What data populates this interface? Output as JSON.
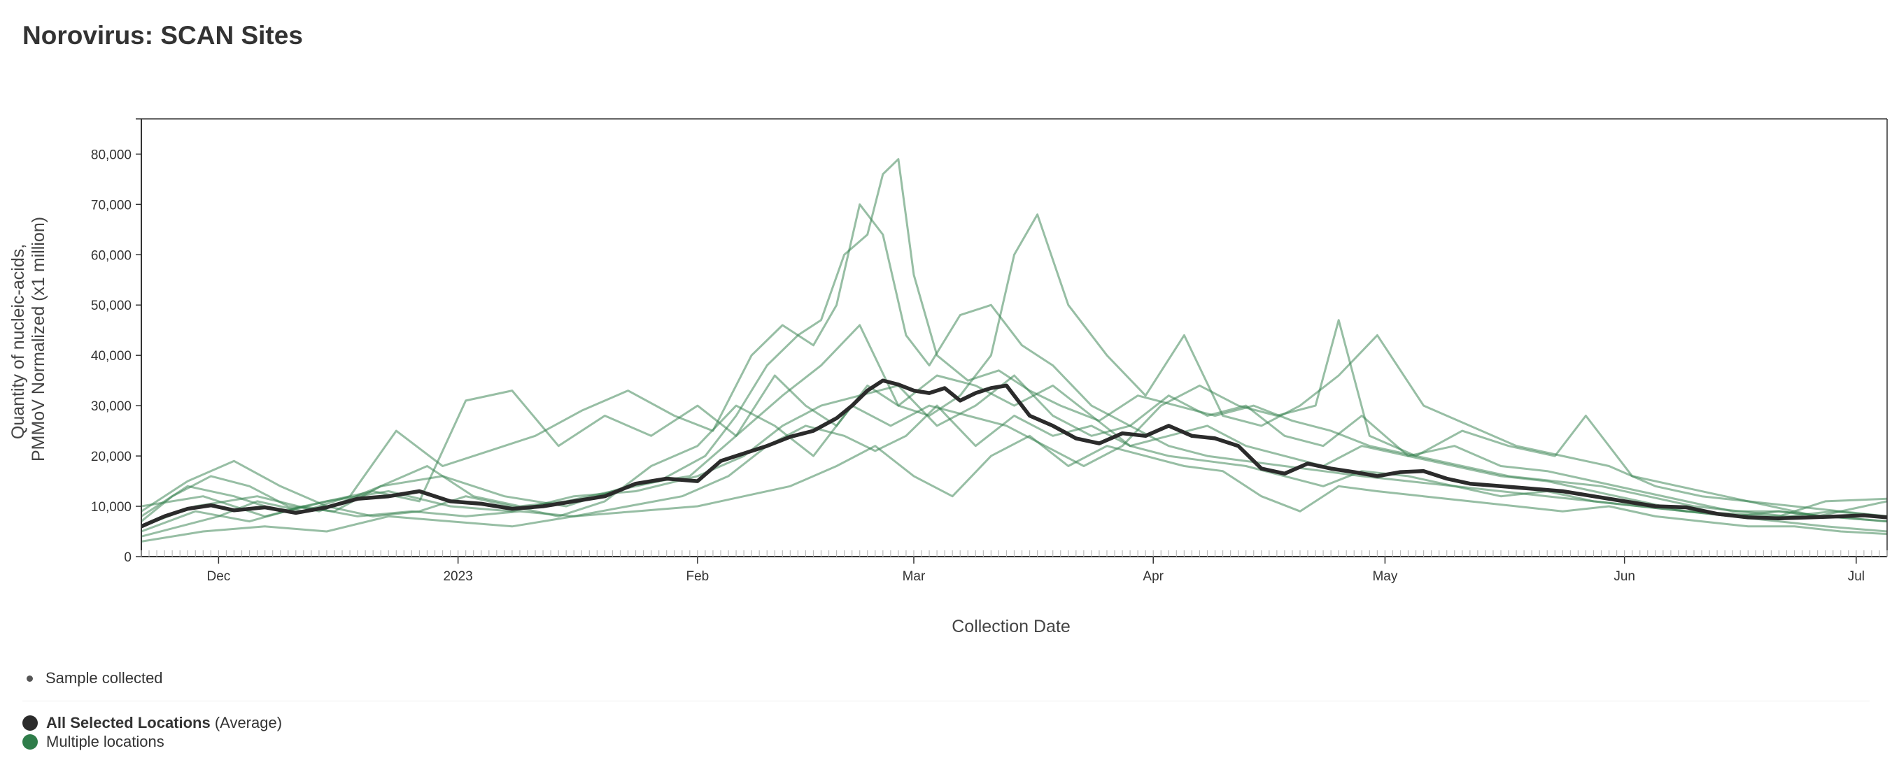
{
  "page": {
    "title": "Norovirus: SCAN Sites"
  },
  "legend": {
    "sample_label": "Sample collected",
    "average_bold": "All Selected Locations",
    "average_suffix": " (Average)",
    "multiple_label": "Multiple locations"
  },
  "colors": {
    "average": "#2b2b2b",
    "sites": "#2f7d4a",
    "sample_dot": "#555555",
    "axis": "#333333"
  },
  "chart_data": {
    "type": "line",
    "title": "Norovirus: SCAN Sites",
    "xlabel": "Collection Date",
    "ylabel_lines": [
      "Quantity of nucleic-acids,",
      "PMMoV Normalized (x1 million)"
    ],
    "x_range": [
      "2022-11-21",
      "2023-07-05"
    ],
    "ylim": [
      0,
      87000
    ],
    "y_ticks": [
      0,
      10000,
      20000,
      30000,
      40000,
      50000,
      60000,
      70000,
      80000
    ],
    "y_tick_labels": [
      "0",
      "10,000",
      "20,000",
      "30,000",
      "40,000",
      "50,000",
      "60,000",
      "70,000",
      "80,000"
    ],
    "x_ticks": [
      {
        "date": "2022-12-01",
        "label": "Dec"
      },
      {
        "date": "2023-01-01",
        "label": "2023"
      },
      {
        "date": "2023-02-01",
        "label": "Feb"
      },
      {
        "date": "2023-03-01",
        "label": "Mar"
      },
      {
        "date": "2023-04-01",
        "label": "Apr"
      },
      {
        "date": "2023-05-01",
        "label": "May"
      },
      {
        "date": "2023-06-01",
        "label": "Jun"
      },
      {
        "date": "2023-07-01",
        "label": "Jul"
      }
    ],
    "grid": false,
    "legend_position": "bottom-left",
    "average": {
      "x": [
        "2022-11-21",
        "2022-11-24",
        "2022-11-27",
        "2022-11-30",
        "2022-12-03",
        "2022-12-07",
        "2022-12-11",
        "2022-12-15",
        "2022-12-19",
        "2022-12-23",
        "2022-12-27",
        "2022-12-31",
        "2023-01-04",
        "2023-01-08",
        "2023-01-12",
        "2023-01-16",
        "2023-01-20",
        "2023-01-24",
        "2023-01-28",
        "2023-02-01",
        "2023-02-04",
        "2023-02-07",
        "2023-02-10",
        "2023-02-13",
        "2023-02-16",
        "2023-02-19",
        "2023-02-21",
        "2023-02-23",
        "2023-02-25",
        "2023-02-27",
        "2023-03-01",
        "2023-03-03",
        "2023-03-05",
        "2023-03-07",
        "2023-03-09",
        "2023-03-11",
        "2023-03-13",
        "2023-03-16",
        "2023-03-19",
        "2023-03-22",
        "2023-03-25",
        "2023-03-28",
        "2023-03-31",
        "2023-04-03",
        "2023-04-06",
        "2023-04-09",
        "2023-04-12",
        "2023-04-15",
        "2023-04-18",
        "2023-04-21",
        "2023-04-24",
        "2023-04-27",
        "2023-04-30",
        "2023-05-03",
        "2023-05-06",
        "2023-05-09",
        "2023-05-12",
        "2023-05-16",
        "2023-05-20",
        "2023-05-24",
        "2023-05-28",
        "2023-06-01",
        "2023-06-05",
        "2023-06-09",
        "2023-06-13",
        "2023-06-17",
        "2023-06-21",
        "2023-06-25",
        "2023-06-29",
        "2023-07-02",
        "2023-07-05"
      ],
      "y": [
        6000,
        8000,
        9500,
        10200,
        9200,
        9800,
        8700,
        9800,
        11500,
        12000,
        13000,
        11000,
        10500,
        9500,
        10000,
        11000,
        12000,
        14500,
        15500,
        15000,
        19000,
        20500,
        22000,
        23800,
        25000,
        27500,
        30000,
        33000,
        35000,
        34200,
        33000,
        32500,
        33500,
        31000,
        32500,
        33500,
        34000,
        28000,
        26000,
        23500,
        22500,
        24500,
        24000,
        26000,
        24000,
        23500,
        22000,
        17500,
        16500,
        18500,
        17500,
        16800,
        16000,
        16800,
        17000,
        15500,
        14500,
        14000,
        13500,
        13000,
        12000,
        11000,
        10000,
        9800,
        8500,
        7800,
        7600,
        7800,
        8000,
        8200,
        7800
      ]
    },
    "series": [
      {
        "x": [
          "2022-11-21",
          "2022-11-25",
          "2022-11-30",
          "2022-12-05",
          "2022-12-10",
          "2022-12-16",
          "2022-12-22",
          "2022-12-28",
          "2023-01-03",
          "2023-01-09",
          "2023-01-15",
          "2023-01-21",
          "2023-01-27",
          "2023-02-02",
          "2023-02-06",
          "2023-02-10",
          "2023-02-14",
          "2023-02-17",
          "2023-02-20",
          "2023-02-23",
          "2023-02-25",
          "2023-02-27",
          "2023-03-01",
          "2023-03-04",
          "2023-03-08",
          "2023-03-12",
          "2023-03-16",
          "2023-03-20",
          "2023-03-25",
          "2023-03-30",
          "2023-04-04",
          "2023-04-09",
          "2023-04-14",
          "2023-04-19",
          "2023-04-24",
          "2023-04-29",
          "2023-05-05",
          "2023-05-11",
          "2023-05-17",
          "2023-05-23",
          "2023-05-29",
          "2023-06-04",
          "2023-06-10",
          "2023-06-16",
          "2023-06-22",
          "2023-06-28",
          "2023-07-05"
        ],
        "y": [
          7000,
          12000,
          16000,
          14000,
          10000,
          9000,
          14000,
          18000,
          12000,
          10000,
          11000,
          13000,
          15000,
          20000,
          28000,
          38000,
          44000,
          47000,
          60000,
          64000,
          76000,
          79000,
          56000,
          40000,
          35000,
          37000,
          33000,
          30000,
          27000,
          32000,
          30000,
          28000,
          30000,
          27000,
          25000,
          22000,
          20000,
          18000,
          16000,
          15000,
          14000,
          12000,
          10000,
          9000,
          8000,
          9000,
          8000
        ]
      },
      {
        "x": [
          "2022-11-21",
          "2022-11-26",
          "2022-12-01",
          "2022-12-06",
          "2022-12-12",
          "2022-12-18",
          "2022-12-24",
          "2022-12-30",
          "2023-01-05",
          "2023-01-11",
          "2023-01-17",
          "2023-01-23",
          "2023-01-29",
          "2023-02-03",
          "2023-02-08",
          "2023-02-12",
          "2023-02-16",
          "2023-02-19",
          "2023-02-22",
          "2023-02-25",
          "2023-02-28",
          "2023-03-03",
          "2023-03-07",
          "2023-03-11",
          "2023-03-15",
          "2023-03-19",
          "2023-03-24",
          "2023-03-29",
          "2023-04-03",
          "2023-04-08",
          "2023-04-13",
          "2023-04-18",
          "2023-04-23",
          "2023-04-28",
          "2023-05-04",
          "2023-05-10",
          "2023-05-16",
          "2023-05-22",
          "2023-05-28",
          "2023-06-03",
          "2023-06-09",
          "2023-06-15",
          "2023-06-21",
          "2023-06-27",
          "2023-07-05"
        ],
        "y": [
          4000,
          6000,
          8000,
          11000,
          9000,
          12000,
          25000,
          18000,
          21000,
          24000,
          29000,
          33000,
          28000,
          25000,
          40000,
          46000,
          42000,
          50000,
          70000,
          64000,
          44000,
          38000,
          48000,
          50000,
          42000,
          38000,
          30000,
          26000,
          32000,
          28000,
          30000,
          24000,
          22000,
          28000,
          20000,
          22000,
          18000,
          17000,
          15000,
          13000,
          11000,
          9000,
          9000,
          8000,
          7000
        ]
      },
      {
        "x": [
          "2022-11-21",
          "2022-11-27",
          "2022-12-03",
          "2022-12-09",
          "2022-12-15",
          "2022-12-21",
          "2022-12-27",
          "2023-01-02",
          "2023-01-08",
          "2023-01-14",
          "2023-01-20",
          "2023-01-26",
          "2023-02-01",
          "2023-02-06",
          "2023-02-11",
          "2023-02-15",
          "2023-02-19",
          "2023-02-23",
          "2023-02-27",
          "2023-03-03",
          "2023-03-07",
          "2023-03-11",
          "2023-03-14",
          "2023-03-17",
          "2023-03-21",
          "2023-03-26",
          "2023-03-31",
          "2023-04-05",
          "2023-04-10",
          "2023-04-15",
          "2023-04-20",
          "2023-04-25",
          "2023-04-30",
          "2023-05-06",
          "2023-05-12",
          "2023-05-18",
          "2023-05-24",
          "2023-05-30",
          "2023-06-05",
          "2023-06-11",
          "2023-06-17",
          "2023-06-23",
          "2023-06-29",
          "2023-07-05"
        ],
        "y": [
          8000,
          14000,
          12000,
          9000,
          11000,
          13000,
          11000,
          31000,
          33000,
          22000,
          28000,
          24000,
          30000,
          24000,
          36000,
          30000,
          26000,
          34000,
          30000,
          28000,
          32000,
          40000,
          60000,
          68000,
          50000,
          40000,
          32000,
          44000,
          28000,
          26000,
          30000,
          36000,
          44000,
          30000,
          26000,
          22000,
          20000,
          18000,
          14000,
          12000,
          11000,
          10000,
          9000,
          8000
        ]
      },
      {
        "x": [
          "2022-11-21",
          "2022-11-28",
          "2022-12-05",
          "2022-12-12",
          "2022-12-19",
          "2022-12-26",
          "2023-01-02",
          "2023-01-09",
          "2023-01-16",
          "2023-01-23",
          "2023-01-30",
          "2023-02-05",
          "2023-02-10",
          "2023-02-15",
          "2023-02-20",
          "2023-02-24",
          "2023-02-28",
          "2023-03-04",
          "2023-03-09",
          "2023-03-14",
          "2023-03-19",
          "2023-03-24",
          "2023-03-29",
          "2023-04-03",
          "2023-04-08",
          "2023-04-13",
          "2023-04-18",
          "2023-04-23",
          "2023-04-28",
          "2023-05-04",
          "2023-05-10",
          "2023-05-16",
          "2023-05-22",
          "2023-05-28",
          "2023-06-03",
          "2023-06-09",
          "2023-06-15",
          "2023-06-21",
          "2023-06-27",
          "2023-07-05"
        ],
        "y": [
          5000,
          9000,
          7000,
          10000,
          8000,
          9000,
          8000,
          9000,
          8000,
          10000,
          12000,
          16000,
          22000,
          26000,
          24000,
          21000,
          24000,
          30000,
          22000,
          28000,
          24000,
          26000,
          22000,
          20000,
          19000,
          18000,
          16000,
          14000,
          17000,
          16000,
          14000,
          12000,
          13000,
          11000,
          10000,
          9000,
          8000,
          7000,
          6000,
          5000
        ]
      },
      {
        "x": [
          "2022-11-21",
          "2022-11-29",
          "2022-12-07",
          "2022-12-15",
          "2022-12-23",
          "2022-12-31",
          "2023-01-08",
          "2023-01-16",
          "2023-01-24",
          "2023-02-01",
          "2023-02-07",
          "2023-02-13",
          "2023-02-19",
          "2023-02-24",
          "2023-03-01",
          "2023-03-06",
          "2023-03-11",
          "2023-03-16",
          "2023-03-21",
          "2023-03-26",
          "2023-03-31",
          "2023-04-05",
          "2023-04-10",
          "2023-04-15",
          "2023-04-20",
          "2023-04-25",
          "2023-04-30",
          "2023-05-06",
          "2023-05-12",
          "2023-05-18",
          "2023-05-24",
          "2023-05-30",
          "2023-06-05",
          "2023-06-11",
          "2023-06-17",
          "2023-06-23",
          "2023-06-29",
          "2023-07-05"
        ],
        "y": [
          3000,
          5000,
          6000,
          5000,
          8000,
          7000,
          6000,
          8000,
          9000,
          10000,
          12000,
          14000,
          18000,
          22000,
          16000,
          12000,
          20000,
          24000,
          18000,
          22000,
          20000,
          18000,
          17000,
          12000,
          9000,
          14000,
          13000,
          12000,
          11000,
          10000,
          9000,
          10000,
          8000,
          7000,
          6000,
          6000,
          5000,
          4500
        ]
      },
      {
        "x": [
          "2022-11-21",
          "2022-11-27",
          "2022-12-03",
          "2022-12-09",
          "2022-12-15",
          "2022-12-21",
          "2022-12-27",
          "2023-01-02",
          "2023-01-08",
          "2023-01-14",
          "2023-01-20",
          "2023-01-26",
          "2023-02-01",
          "2023-02-06",
          "2023-02-11",
          "2023-02-16",
          "2023-02-21",
          "2023-02-26",
          "2023-03-03",
          "2023-03-08",
          "2023-03-13",
          "2023-03-18",
          "2023-03-23",
          "2023-03-28",
          "2023-04-02",
          "2023-04-07",
          "2023-04-12",
          "2023-04-17",
          "2023-04-22",
          "2023-04-25",
          "2023-04-29",
          "2023-05-05",
          "2023-05-11",
          "2023-05-17",
          "2023-05-23",
          "2023-05-27",
          "2023-06-02",
          "2023-06-08",
          "2023-06-14",
          "2023-06-20",
          "2023-06-26",
          "2023-07-05"
        ],
        "y": [
          9000,
          15000,
          19000,
          14000,
          10000,
          8000,
          9000,
          12000,
          10000,
          8000,
          11000,
          18000,
          22000,
          30000,
          26000,
          20000,
          30000,
          26000,
          30000,
          28000,
          26000,
          22000,
          18000,
          22000,
          30000,
          34000,
          30000,
          28000,
          30000,
          47000,
          24000,
          20000,
          25000,
          22000,
          20000,
          28000,
          16000,
          14000,
          12000,
          10000,
          8000,
          11000
        ]
      },
      {
        "x": [
          "2022-11-21",
          "2022-11-28",
          "2022-12-06",
          "2022-12-14",
          "2022-12-22",
          "2022-12-30",
          "2023-01-07",
          "2023-01-15",
          "2023-01-23",
          "2023-01-31",
          "2023-02-06",
          "2023-02-12",
          "2023-02-17",
          "2023-02-22",
          "2023-02-27",
          "2023-03-04",
          "2023-03-09",
          "2023-03-14",
          "2023-03-19",
          "2023-03-24",
          "2023-03-29",
          "2023-04-03",
          "2023-04-08",
          "2023-04-13",
          "2023-04-18",
          "2023-04-23",
          "2023-04-28",
          "2023-05-04",
          "2023-05-10",
          "2023-05-16",
          "2023-05-22",
          "2023-05-28",
          "2023-06-03",
          "2023-06-09",
          "2023-06-15",
          "2023-06-21",
          "2023-06-27",
          "2023-07-05"
        ],
        "y": [
          6000,
          10000,
          12000,
          9000,
          14000,
          16000,
          12000,
          10000,
          14000,
          16000,
          24000,
          32000,
          38000,
          46000,
          30000,
          36000,
          34000,
          30000,
          34000,
          28000,
          22000,
          24000,
          26000,
          22000,
          20000,
          18000,
          22000,
          20000,
          18000,
          16000,
          15000,
          13000,
          11000,
          9000,
          8000,
          9000,
          8000,
          7000
        ]
      },
      {
        "x": [
          "2022-11-21",
          "2022-11-29",
          "2022-12-07",
          "2022-12-15",
          "2022-12-23",
          "2022-12-31",
          "2023-01-08",
          "2023-01-16",
          "2023-01-24",
          "2023-02-01",
          "2023-02-07",
          "2023-02-12",
          "2023-02-17",
          "2023-02-22",
          "2023-02-27",
          "2023-03-04",
          "2023-03-09",
          "2023-03-14",
          "2023-03-19",
          "2023-03-24",
          "2023-03-29",
          "2023-04-03",
          "2023-04-08",
          "2023-04-13",
          "2023-04-18",
          "2023-04-23",
          "2023-04-28",
          "2023-05-04",
          "2023-05-10",
          "2023-05-16",
          "2023-05-22",
          "2023-05-28",
          "2023-06-03",
          "2023-06-09",
          "2023-06-15",
          "2023-06-21",
          "2023-06-27",
          "2023-07-05"
        ],
        "y": [
          10000,
          12000,
          8000,
          11000,
          13000,
          10000,
          9000,
          12000,
          13000,
          16000,
          20000,
          26000,
          30000,
          32000,
          34000,
          26000,
          30000,
          36000,
          28000,
          24000,
          26000,
          22000,
          20000,
          19000,
          18000,
          17000,
          16000,
          15000,
          14000,
          13000,
          12000,
          11000,
          10000,
          9000,
          8500,
          8000,
          11000,
          11500
        ]
      }
    ]
  }
}
